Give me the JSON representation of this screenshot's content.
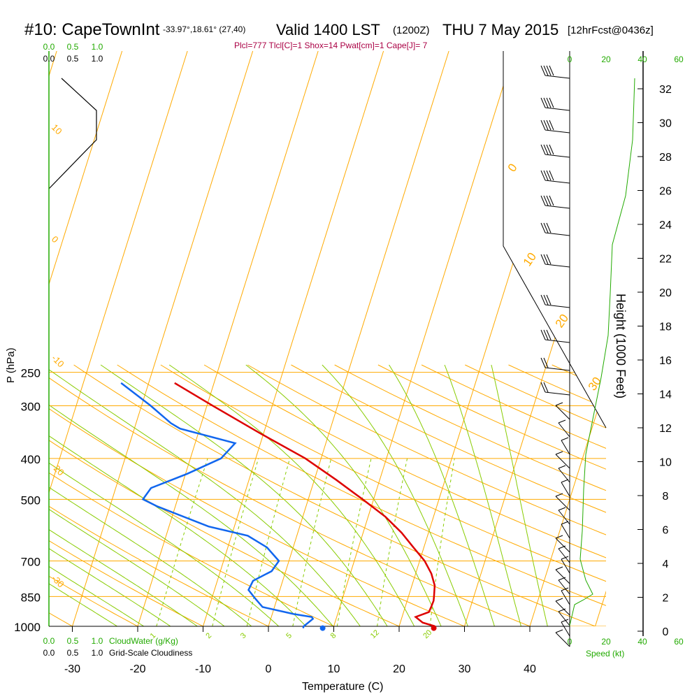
{
  "header": {
    "station": "#10: CapeTownInt",
    "coords": "-33.97°,18.61° (27,40)",
    "valid": "Valid 1400 LST",
    "zulu": "(1200Z)",
    "date": "THU 7 May 2015",
    "fcst": "[12hrFcst@0436z]",
    "indices": "Plcl=777 Tlcl[C]=1 Shox=14 Pwat[cm]=1 Cape[J]= 7"
  },
  "colors": {
    "temperature": "#dd0000",
    "dewpoint": "#1166ee",
    "isotherm": "#ffaa00",
    "dry_adiabat": "#ffaa00",
    "moist_adiabat": "#88cc00",
    "mixing_ratio": "#88cc00",
    "green_text": "#22aa00",
    "title_text": "#aa0044"
  },
  "chart_data": {
    "type": "line",
    "diagram": "skew-T log-P",
    "xlabel": "Temperature (C)",
    "ylabel": "P (hPa)",
    "right_axis_label": "Height (1000 Feet)",
    "speed_label": "Speed (kt)",
    "cloudwater_label": "CloudWater (g/Kg)",
    "cloudiness_label": "Grid-Scale Cloudiness",
    "x_ticks": [
      "-30",
      "-20",
      "-10",
      "0",
      "10",
      "20",
      "30",
      "40"
    ],
    "p_ticks": [
      "250",
      "300",
      "400",
      "500",
      "700",
      "850",
      "1000"
    ],
    "height_ticks": [
      "0",
      "2",
      "4",
      "6",
      "8",
      "10",
      "12",
      "14",
      "16",
      "18",
      "20",
      "22",
      "24",
      "26",
      "28",
      "30",
      "32"
    ],
    "speed_ticks": [
      "0",
      "20",
      "40",
      "60"
    ],
    "cloud_ticks_green": [
      "0.0",
      "0.5",
      "1.0"
    ],
    "cloud_ticks_black": [
      "0.0",
      "0.5",
      "1.0"
    ],
    "isotherm_labels": [
      "0",
      "10",
      "20",
      "30"
    ],
    "dry_adiabat_labels": [
      "10",
      "0",
      "-10",
      "-20",
      "-30"
    ],
    "mixing_ratio_labels": [
      "1",
      "2",
      "3",
      "5",
      "8",
      "12",
      "20"
    ],
    "series": [
      {
        "name": "Temperature",
        "points": [
          [
            1000,
            25.5
          ],
          [
            980,
            23.2
          ],
          [
            950,
            21.5
          ],
          [
            925,
            23.0
          ],
          [
            900,
            22.8
          ],
          [
            870,
            22.5
          ],
          [
            850,
            22.1
          ],
          [
            800,
            21.0
          ],
          [
            750,
            19.2
          ],
          [
            700,
            16.8
          ],
          [
            650,
            13.6
          ],
          [
            600,
            10.2
          ],
          [
            550,
            6.0
          ],
          [
            500,
            0.6
          ],
          [
            450,
            -5.5
          ],
          [
            400,
            -12.6
          ],
          [
            350,
            -22.0
          ],
          [
            300,
            -32.5
          ],
          [
            265,
            -40.8
          ]
        ]
      },
      {
        "name": "Dewpoint",
        "points": [
          [
            1010,
            5.5
          ],
          [
            1000,
            5.4
          ],
          [
            960,
            6.0
          ],
          [
            950,
            5.6
          ],
          [
            935,
            2.5
          ],
          [
            900,
            -3.0
          ],
          [
            860,
            -5.0
          ],
          [
            820,
            -7.0
          ],
          [
            780,
            -7.3
          ],
          [
            740,
            -5.5
          ],
          [
            700,
            -5.5
          ],
          [
            650,
            -8.8
          ],
          [
            610,
            -13.0
          ],
          [
            580,
            -20.0
          ],
          [
            520,
            -30.0
          ],
          [
            500,
            -33.0
          ],
          [
            470,
            -33.0
          ],
          [
            435,
            -29.0
          ],
          [
            400,
            -25.5
          ],
          [
            368,
            -25.0
          ],
          [
            340,
            -35.0
          ],
          [
            330,
            -37.0
          ],
          [
            300,
            -42.0
          ],
          [
            265,
            -49.0
          ]
        ]
      }
    ],
    "sfc_temp_marker": 25.5,
    "sfc_dew_marker": 8.5
  }
}
